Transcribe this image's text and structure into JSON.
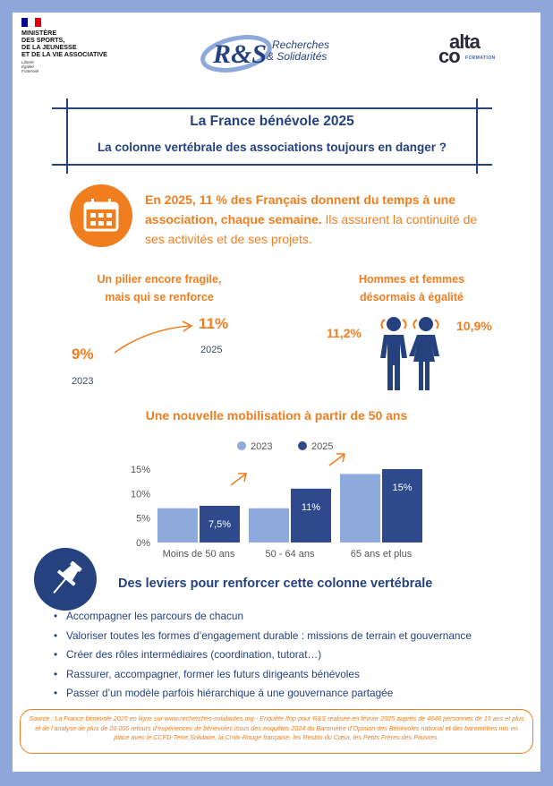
{
  "header": {
    "ministry": "MINISTÈRE\nDES SPORTS,\nDE LA JEUNESSE\nET DE LA VIE ASSOCIATIVE",
    "motto": "Liberté\nÉgalité\nFraternité",
    "rs_line1": "Recherches",
    "rs_line2": "& Solidarités",
    "rs_mark": "R&S",
    "alta_top": "alta",
    "alta_bottom": "co",
    "alta_sub": "FORMATION",
    "colors": {
      "flag_blue": "#000091",
      "flag_red": "#e1000f",
      "navy": "#25427f",
      "orange": "#f07e1f"
    }
  },
  "title": {
    "main": "La France  bénévole 2025",
    "sub": "La colonne vertébrale des associations toujours en danger ?"
  },
  "intro": {
    "icon": "calendar-icon",
    "bold": "En 2025, 11 % des Français donnent du temps à une association, chaque semaine.",
    "rest": " Ils assurent la continuité de ses activités et de ses projets."
  },
  "pillar": {
    "heading": "Un pilier encore fragile,\nmais qui se renforce",
    "from_value": "9%",
    "from_year": "2023",
    "to_value": "11%",
    "to_year": "2025",
    "icon": "arrow-up-right-icon"
  },
  "gender": {
    "heading": "Hommes et femmes\ndésormais à égalité",
    "men": "11,2%",
    "women": "10,9%",
    "icon": "man-woman-icon"
  },
  "chart_data": {
    "type": "bar",
    "title": "Une nouvelle mobilisation à partir de 50 ans",
    "categories": [
      "Moins de 50 ans",
      "50 - 64 ans",
      "65 ans et plus"
    ],
    "series": [
      {
        "name": "2023",
        "values": [
          7,
          7,
          14
        ],
        "color": "#8ea9db",
        "labels": [
          "",
          "",
          ""
        ]
      },
      {
        "name": "2025",
        "values": [
          7.5,
          11,
          15
        ],
        "color": "#2e4a8c",
        "labels": [
          "7,5%",
          "11%",
          "15%"
        ]
      }
    ],
    "y_ticks": [
      "0%",
      "5%",
      "10%",
      "15%"
    ],
    "ylim": [
      0,
      15
    ],
    "grid": false,
    "legend": "top"
  },
  "levers": {
    "icon": "pushpin-icon",
    "title": "Des leviers pour renforcer cette colonne vertébrale",
    "items": [
      "Accompagner les parcours de chacun",
      "Valoriser toutes les formes d’engagement durable : missions de terrain et gouvernance",
      "Créer des rôles intermédiaires (coordination, tutorat…)",
      "Rassurer, accompagner, former les futurs dirigeants bénévoles",
      "Passer d’un modèle parfois hiérarchique à une gouvernance partagée"
    ]
  },
  "source": "Source : La France bénévole 2025 en ligne sur www.recherches-solidarites.org - Enquête Ifop pour R&S réalisée en février 2025 auprès de 4646 personnes de 15 ans et plus et de l’analyse de plus de 20.000 retours d’expériences de bénévoles issus des enquêtes 2024 du Baromètre d’Opinion des Bénévoles national et des baromètres mis en place avec le CCFD-Terre Solidaire, la Croix-Rouge française, les Restos du Cœur, les Petits Frères des Pauvres."
}
